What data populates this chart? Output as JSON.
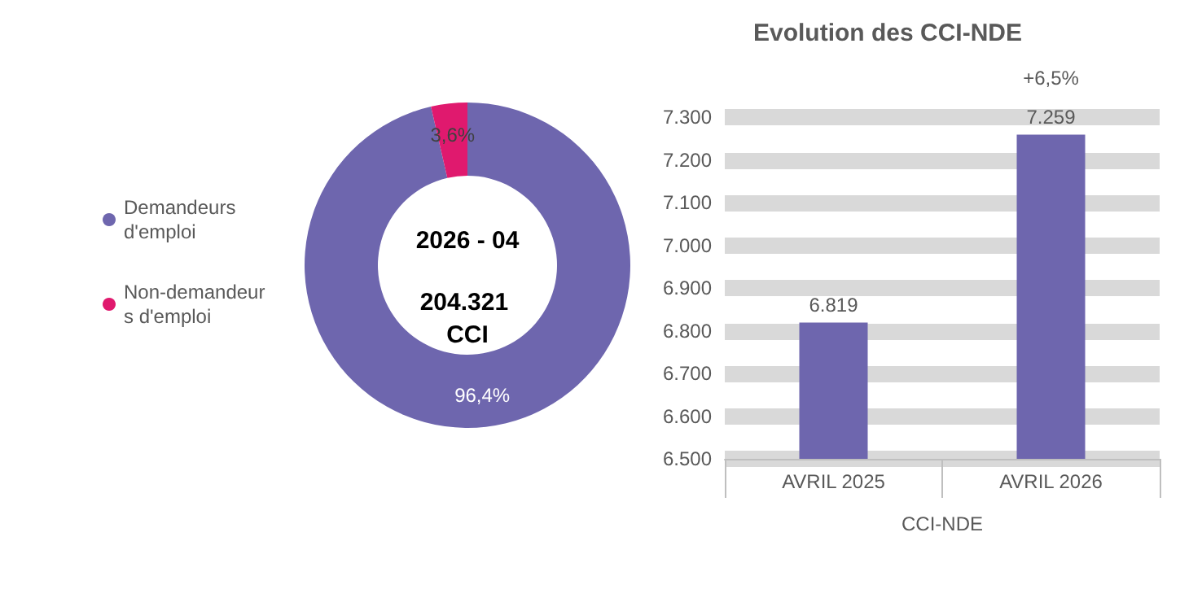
{
  "chart_data": [
    {
      "type": "donut",
      "categories": [
        "Demandeurs d'emploi",
        "Non-demandeurs d'emploi"
      ],
      "values": [
        96.4,
        3.6
      ],
      "colors": [
        "#6e66ae",
        "#e0196e"
      ],
      "value_labels": [
        "96,4%",
        "3,6%"
      ],
      "legend": "left",
      "annotations": [
        "2026 - 04",
        "204.321 CCI"
      ]
    },
    {
      "type": "bar",
      "title": "Evolution des CCI-NDE",
      "categories": [
        "AVRIL 2025",
        "AVRIL 2026"
      ],
      "values": [
        6819,
        7259
      ],
      "color": "#6e66ae",
      "value_labels": [
        "6.819",
        "7.259"
      ],
      "xlabel": "CCI-NDE",
      "ylim": [
        6500,
        7300
      ],
      "yticks": [
        {
          "value": 6500,
          "label": "6.500"
        },
        {
          "value": 6600,
          "label": "6.600"
        },
        {
          "value": 6700,
          "label": "6.700"
        },
        {
          "value": 6800,
          "label": "6.800"
        },
        {
          "value": 6900,
          "label": "6.900"
        },
        {
          "value": 7000,
          "label": "7.000"
        },
        {
          "value": 7100,
          "label": "7.100"
        },
        {
          "value": 7200,
          "label": "7.200"
        },
        {
          "value": 7300,
          "label": "7.300"
        }
      ],
      "grid": "y",
      "annotations": [
        {
          "text": "+6,5%",
          "x": "AVRIL 2026",
          "y": 7259
        }
      ]
    }
  ]
}
